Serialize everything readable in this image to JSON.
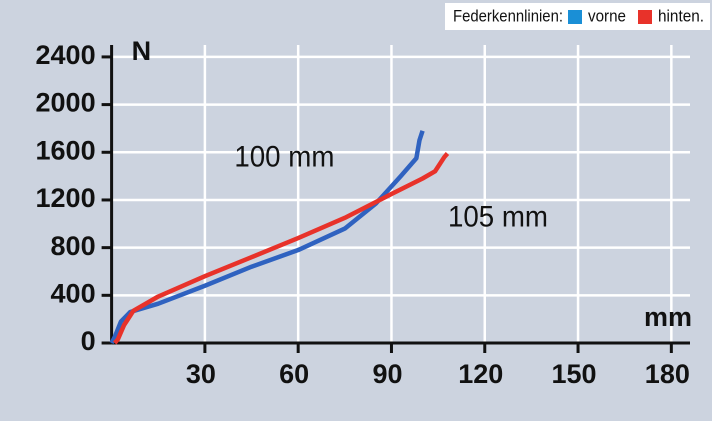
{
  "chart_data": {
    "type": "line",
    "legend_title": "Federkennlinien:",
    "xlabel": "mm",
    "ylabel": "N",
    "annotations": [
      {
        "text": "100 mm",
        "x": 62,
        "y": 1780
      },
      {
        "text": "105 mm",
        "x": 113,
        "y": 1380
      }
    ],
    "series": [
      {
        "name": "vorne",
        "color": "#2f62c0",
        "legend_color": "#1a8fd6",
        "x": [
          0,
          1,
          3,
          6,
          15,
          30,
          45,
          60,
          75,
          85,
          93,
          98,
          99,
          100
        ],
        "values": [
          0,
          50,
          180,
          260,
          330,
          480,
          640,
          780,
          960,
          1170,
          1400,
          1550,
          1700,
          1780
        ]
      },
      {
        "name": "hinten.",
        "color": "#e8322a",
        "legend_color": "#e8322a",
        "x": [
          1,
          2,
          4,
          7,
          15,
          30,
          45,
          60,
          75,
          90,
          100,
          104,
          107,
          108
        ],
        "values": [
          0,
          30,
          150,
          270,
          390,
          560,
          720,
          880,
          1050,
          1250,
          1380,
          1440,
          1560,
          1590
        ]
      }
    ],
    "xlim": [
      0,
      186
    ],
    "xticks": [
      30,
      60,
      90,
      120,
      150,
      180
    ],
    "ylim": [
      0,
      2500
    ],
    "yticks": [
      0,
      400,
      800,
      1200,
      1600,
      2000,
      2400
    ],
    "grid": true
  }
}
